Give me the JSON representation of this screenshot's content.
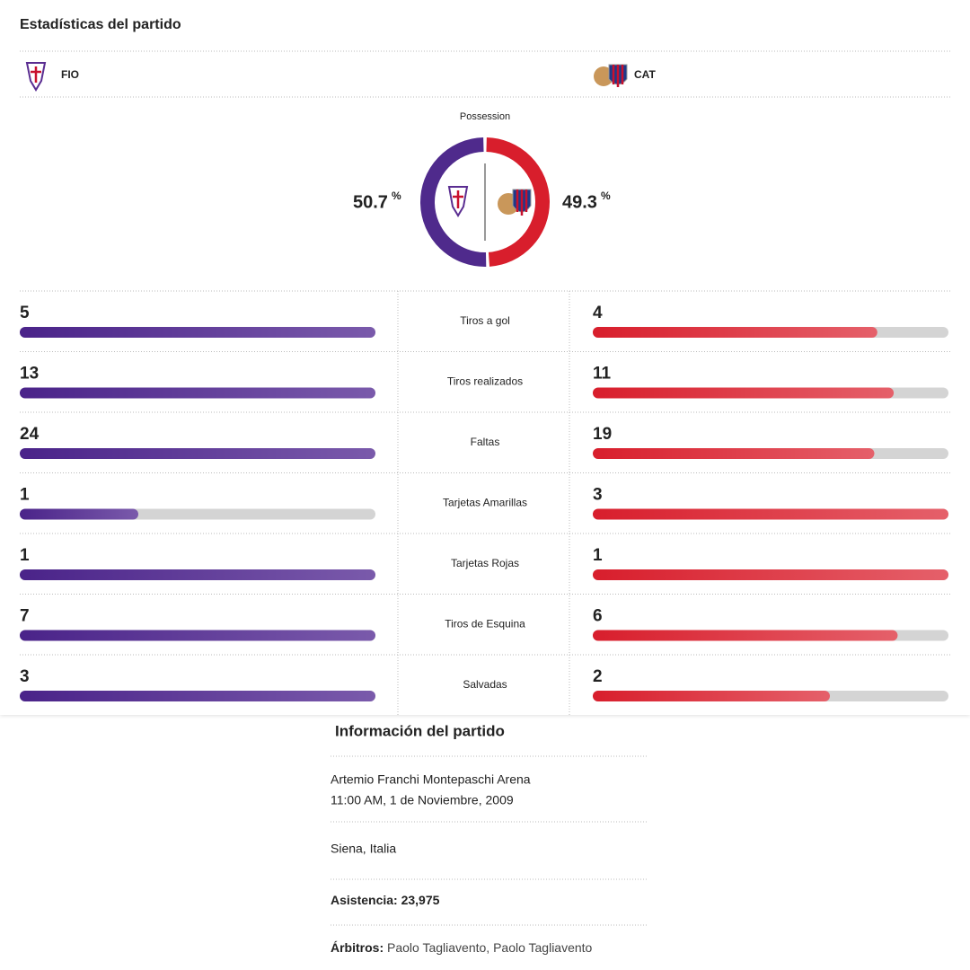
{
  "header": {
    "title": "Estadísticas del partido"
  },
  "teams": {
    "home": "FIO",
    "away": "CAT"
  },
  "possession": {
    "title": "Possession",
    "home": 50.7,
    "away": 49.3,
    "unit": "%"
  },
  "stats": [
    {
      "label": "Tiros a gol",
      "home": 5,
      "away": 4
    },
    {
      "label": "Tiros realizados",
      "home": 13,
      "away": 11
    },
    {
      "label": "Faltas",
      "home": 24,
      "away": 19
    },
    {
      "label": "Tarjetas Amarillas",
      "home": 1,
      "away": 3
    },
    {
      "label": "Tarjetas Rojas",
      "home": 1,
      "away": 1
    },
    {
      "label": "Tiros de Esquina",
      "home": 7,
      "away": 6
    },
    {
      "label": "Salvadas",
      "home": 3,
      "away": 2
    }
  ],
  "info": {
    "title": "Información del partido",
    "venue": "Artemio Franchi Montepaschi Arena",
    "datetime": "11:00 AM, 1 de Noviembre, 2009",
    "location": "Siena, Italia",
    "attendance": {
      "label": "Asistencia:",
      "value": "23,975"
    },
    "referees": {
      "label": "Árbitros:",
      "value": "Paolo Tagliavento, Paolo Tagliavento"
    }
  }
}
